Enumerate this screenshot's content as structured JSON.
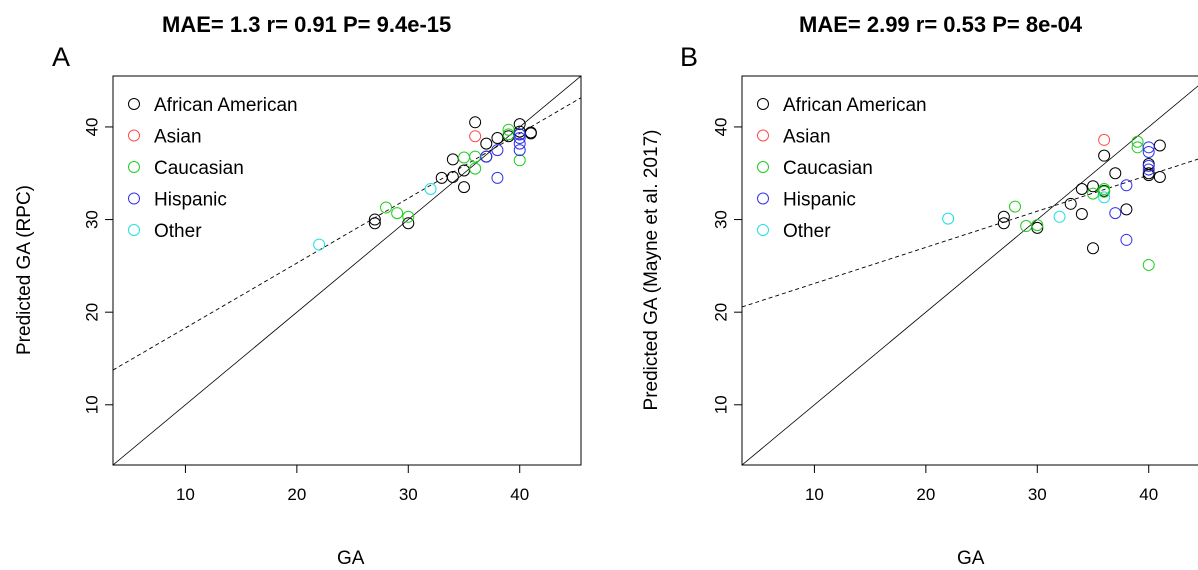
{
  "chart_data": [
    {
      "type": "scatter",
      "panel_label": "A",
      "title": "MAE= 1.3  r= 0.91  P= 9.4e-15",
      "xlabel": "GA",
      "ylabel": "Predicted GA (RPC)",
      "xlim": [
        3.5,
        45.5
      ],
      "ylim": [
        3.5,
        45.5
      ],
      "xticks": [
        10,
        20,
        30,
        40
      ],
      "yticks": [
        10,
        20,
        30,
        40
      ],
      "grid": false,
      "legend_position": "top-left",
      "lines": [
        {
          "kind": "identity",
          "style": "solid",
          "slope": 1,
          "intercept": 0
        },
        {
          "kind": "fit",
          "style": "dashed",
          "slope": 0.7,
          "intercept": 11.3
        }
      ],
      "series": [
        {
          "name": "African American",
          "color": "#000000",
          "points": [
            [
              27,
              29.6
            ],
            [
              27,
              30.0
            ],
            [
              30,
              29.6
            ],
            [
              33,
              34.5
            ],
            [
              34,
              34.6
            ],
            [
              34,
              36.5
            ],
            [
              35,
              33.5
            ],
            [
              35,
              35.3
            ],
            [
              36,
              40.5
            ],
            [
              37,
              38.2
            ],
            [
              37,
              36.8
            ],
            [
              38,
              38.8
            ],
            [
              39,
              39.0
            ],
            [
              40,
              40.3
            ],
            [
              40,
              39.5
            ],
            [
              40,
              39.2
            ],
            [
              41,
              39.3
            ],
            [
              41,
              39.4
            ]
          ]
        },
        {
          "name": "Asian",
          "color": "#ff4d4d",
          "points": [
            [
              36,
              39.0
            ]
          ]
        },
        {
          "name": "Caucasian",
          "color": "#22cc22",
          "points": [
            [
              28,
              31.3
            ],
            [
              29,
              30.7
            ],
            [
              30,
              30.3
            ],
            [
              35,
              36.7
            ],
            [
              36,
              35.5
            ],
            [
              36,
              36.8
            ],
            [
              39,
              39.7
            ],
            [
              39,
              39.2
            ],
            [
              40,
              36.4
            ]
          ]
        },
        {
          "name": "Hispanic",
          "color": "#3333ee",
          "points": [
            [
              37,
              36.8
            ],
            [
              38,
              37.5
            ],
            [
              38,
              34.5
            ],
            [
              40,
              37.5
            ],
            [
              40,
              38.2
            ],
            [
              40,
              38.8
            ],
            [
              40,
              39.2
            ]
          ]
        },
        {
          "name": "Other",
          "color": "#22e0e0",
          "points": [
            [
              22,
              27.3
            ],
            [
              32,
              33.3
            ]
          ]
        }
      ]
    },
    {
      "type": "scatter",
      "panel_label": "B",
      "title": "MAE= 2.99  r= 0.53  P= 8e-04",
      "xlabel": "GA",
      "ylabel": "Predicted GA (Mayne et al. 2017)",
      "xlim": [
        3.5,
        45.5
      ],
      "ylim": [
        3.5,
        45.5
      ],
      "xticks": [
        10,
        20,
        30,
        40
      ],
      "yticks": [
        10,
        20,
        30,
        40
      ],
      "grid": false,
      "legend_position": "top-left",
      "lines": [
        {
          "kind": "identity",
          "style": "solid",
          "slope": 1,
          "intercept": 0
        },
        {
          "kind": "fit",
          "style": "dashed",
          "slope": 0.39,
          "intercept": 19.2
        }
      ],
      "series": [
        {
          "name": "African American",
          "color": "#000000",
          "points": [
            [
              27,
              29.6
            ],
            [
              27,
              30.3
            ],
            [
              30,
              29.1
            ],
            [
              33,
              31.7
            ],
            [
              34,
              30.6
            ],
            [
              34,
              33.3
            ],
            [
              35,
              33.6
            ],
            [
              35,
              26.9
            ],
            [
              36,
              36.9
            ],
            [
              36,
              33.1
            ],
            [
              37,
              35.0
            ],
            [
              38,
              31.1
            ],
            [
              40,
              35.0
            ],
            [
              40,
              34.8
            ],
            [
              40,
              36.0
            ],
            [
              41,
              34.6
            ],
            [
              41,
              38.0
            ]
          ]
        },
        {
          "name": "Asian",
          "color": "#ff4d4d",
          "points": [
            [
              36,
              38.6
            ]
          ]
        },
        {
          "name": "Caucasian",
          "color": "#22cc22",
          "points": [
            [
              28,
              31.4
            ],
            [
              29,
              29.3
            ],
            [
              30,
              29.4
            ],
            [
              35,
              32.8
            ],
            [
              36,
              33.0
            ],
            [
              36,
              33.3
            ],
            [
              39,
              38.4
            ],
            [
              39,
              37.8
            ],
            [
              40,
              25.1
            ]
          ]
        },
        {
          "name": "Hispanic",
          "color": "#3333ee",
          "points": [
            [
              37,
              30.7
            ],
            [
              38,
              33.7
            ],
            [
              38,
              27.8
            ],
            [
              40,
              35.4
            ],
            [
              40,
              35.8
            ],
            [
              40,
              37.3
            ],
            [
              40,
              37.8
            ]
          ]
        },
        {
          "name": "Other",
          "color": "#22e0e0",
          "points": [
            [
              22,
              30.1
            ],
            [
              32,
              30.3
            ],
            [
              36,
              32.4
            ]
          ]
        }
      ]
    }
  ]
}
